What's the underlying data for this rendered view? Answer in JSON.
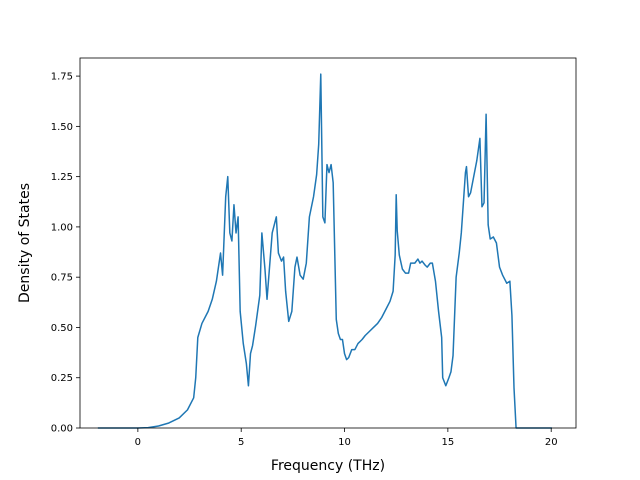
{
  "chart_data": {
    "type": "line",
    "title": "",
    "xlabel": "Frequency (THz)",
    "ylabel": "Density of States",
    "xlim": [
      -2.8,
      21.2
    ],
    "ylim": [
      0.0,
      1.84
    ],
    "xticks": [
      0,
      5,
      10,
      15,
      20
    ],
    "xtick_labels": [
      "0",
      "5",
      "10",
      "15",
      "20"
    ],
    "yticks": [
      0.0,
      0.25,
      0.5,
      0.75,
      1.0,
      1.25,
      1.5,
      1.75
    ],
    "ytick_labels": [
      "0.00",
      "0.25",
      "0.50",
      "0.75",
      "1.00",
      "1.25",
      "1.50",
      "1.75"
    ],
    "grid": false,
    "legend": "none",
    "line_color": "#1f77b4",
    "series": [
      {
        "points": [
          [
            -1.9,
            0.0
          ],
          [
            0.0,
            0.0
          ],
          [
            0.5,
            0.002
          ],
          [
            1.0,
            0.01
          ],
          [
            1.5,
            0.025
          ],
          [
            2.0,
            0.05
          ],
          [
            2.4,
            0.09
          ],
          [
            2.7,
            0.15
          ],
          [
            2.8,
            0.25
          ],
          [
            2.9,
            0.45
          ],
          [
            3.1,
            0.52
          ],
          [
            3.4,
            0.58
          ],
          [
            3.6,
            0.64
          ],
          [
            3.8,
            0.73
          ],
          [
            4.0,
            0.87
          ],
          [
            4.1,
            0.76
          ],
          [
            4.25,
            1.15
          ],
          [
            4.35,
            1.25
          ],
          [
            4.45,
            0.97
          ],
          [
            4.55,
            0.93
          ],
          [
            4.65,
            1.11
          ],
          [
            4.75,
            0.97
          ],
          [
            4.85,
            1.05
          ],
          [
            4.95,
            0.58
          ],
          [
            5.1,
            0.42
          ],
          [
            5.25,
            0.32
          ],
          [
            5.35,
            0.21
          ],
          [
            5.45,
            0.37
          ],
          [
            5.55,
            0.41
          ],
          [
            5.7,
            0.51
          ],
          [
            5.9,
            0.66
          ],
          [
            6.0,
            0.97
          ],
          [
            6.15,
            0.79
          ],
          [
            6.25,
            0.64
          ],
          [
            6.5,
            0.97
          ],
          [
            6.7,
            1.05
          ],
          [
            6.8,
            0.87
          ],
          [
            6.95,
            0.83
          ],
          [
            7.05,
            0.85
          ],
          [
            7.15,
            0.68
          ],
          [
            7.3,
            0.53
          ],
          [
            7.45,
            0.58
          ],
          [
            7.6,
            0.8
          ],
          [
            7.7,
            0.85
          ],
          [
            7.85,
            0.76
          ],
          [
            8.0,
            0.74
          ],
          [
            8.15,
            0.82
          ],
          [
            8.3,
            1.05
          ],
          [
            8.5,
            1.15
          ],
          [
            8.65,
            1.26
          ],
          [
            8.75,
            1.41
          ],
          [
            8.85,
            1.76
          ],
          [
            8.95,
            1.05
          ],
          [
            9.05,
            1.02
          ],
          [
            9.15,
            1.31
          ],
          [
            9.25,
            1.27
          ],
          [
            9.35,
            1.31
          ],
          [
            9.45,
            1.22
          ],
          [
            9.6,
            0.54
          ],
          [
            9.7,
            0.47
          ],
          [
            9.8,
            0.44
          ],
          [
            9.9,
            0.44
          ],
          [
            10.0,
            0.37
          ],
          [
            10.1,
            0.34
          ],
          [
            10.2,
            0.35
          ],
          [
            10.35,
            0.39
          ],
          [
            10.5,
            0.39
          ],
          [
            10.65,
            0.42
          ],
          [
            10.85,
            0.44
          ],
          [
            11.0,
            0.46
          ],
          [
            11.2,
            0.48
          ],
          [
            11.4,
            0.5
          ],
          [
            11.6,
            0.52
          ],
          [
            11.8,
            0.55
          ],
          [
            12.0,
            0.59
          ],
          [
            12.2,
            0.63
          ],
          [
            12.35,
            0.68
          ],
          [
            12.45,
            0.86
          ],
          [
            12.5,
            1.16
          ],
          [
            12.55,
            0.98
          ],
          [
            12.65,
            0.86
          ],
          [
            12.8,
            0.79
          ],
          [
            12.95,
            0.77
          ],
          [
            13.1,
            0.77
          ],
          [
            13.2,
            0.82
          ],
          [
            13.4,
            0.82
          ],
          [
            13.55,
            0.84
          ],
          [
            13.65,
            0.82
          ],
          [
            13.75,
            0.83
          ],
          [
            13.9,
            0.81
          ],
          [
            14.0,
            0.8
          ],
          [
            14.15,
            0.82
          ],
          [
            14.25,
            0.82
          ],
          [
            14.4,
            0.73
          ],
          [
            14.55,
            0.58
          ],
          [
            14.7,
            0.45
          ],
          [
            14.75,
            0.25
          ],
          [
            14.9,
            0.21
          ],
          [
            15.05,
            0.25
          ],
          [
            15.15,
            0.28
          ],
          [
            15.25,
            0.36
          ],
          [
            15.4,
            0.75
          ],
          [
            15.55,
            0.87
          ],
          [
            15.65,
            0.97
          ],
          [
            15.75,
            1.12
          ],
          [
            15.85,
            1.27
          ],
          [
            15.9,
            1.3
          ],
          [
            16.0,
            1.15
          ],
          [
            16.1,
            1.17
          ],
          [
            16.25,
            1.25
          ],
          [
            16.4,
            1.33
          ],
          [
            16.55,
            1.44
          ],
          [
            16.65,
            1.1
          ],
          [
            16.75,
            1.12
          ],
          [
            16.85,
            1.56
          ],
          [
            16.95,
            1.01
          ],
          [
            17.05,
            0.94
          ],
          [
            17.2,
            0.95
          ],
          [
            17.35,
            0.92
          ],
          [
            17.5,
            0.8
          ],
          [
            17.65,
            0.76
          ],
          [
            17.85,
            0.72
          ],
          [
            18.0,
            0.73
          ],
          [
            18.1,
            0.56
          ],
          [
            18.2,
            0.2
          ],
          [
            18.3,
            0.0
          ],
          [
            20.0,
            0.0
          ]
        ]
      }
    ]
  }
}
